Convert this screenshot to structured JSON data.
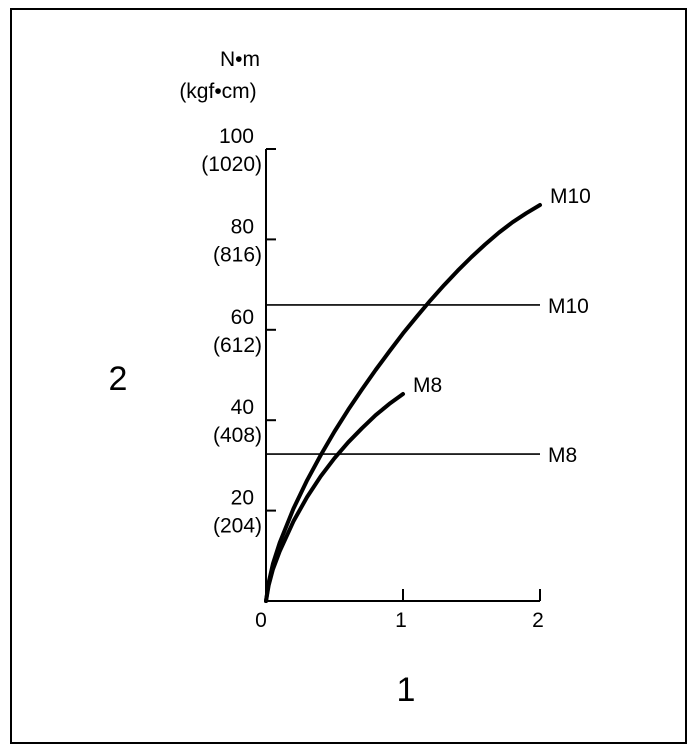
{
  "figure": {
    "x_callout": "1",
    "y_callout": "2"
  },
  "chart_data": {
    "type": "line",
    "title": "",
    "xlabel": "",
    "ylabel_unit_1": "N•m",
    "ylabel_unit_2": "(kgf•cm)",
    "xlim": [
      0,
      2
    ],
    "ylim": [
      0,
      100
    ],
    "x_ticks": [
      {
        "value": 0,
        "label": "0"
      },
      {
        "value": 1,
        "label": "1"
      },
      {
        "value": 2,
        "label": "2"
      }
    ],
    "y_ticks": [
      {
        "value": 20,
        "label": "20",
        "label2": "(204)"
      },
      {
        "value": 40,
        "label": "40",
        "label2": "(408)"
      },
      {
        "value": 60,
        "label": "60",
        "label2": "(612)"
      },
      {
        "value": 80,
        "label": "80",
        "label2": "(816)"
      },
      {
        "value": 100,
        "label": "100",
        "label2": "(1020)"
      }
    ],
    "series": [
      {
        "name": "M10",
        "style": "curve",
        "color": "#000000",
        "x": [
          0,
          0.02,
          0.05,
          0.1,
          0.2,
          0.3,
          0.4,
          0.5,
          0.6,
          0.7,
          0.8,
          0.9,
          1.0,
          1.1,
          1.2,
          1.3,
          1.4,
          1.5,
          1.6,
          1.7,
          1.8,
          1.9,
          2.0
        ],
        "y": [
          0,
          4.1,
          8.2,
          12.9,
          20.4,
          26.7,
          32.3,
          37.5,
          42.3,
          46.8,
          51.1,
          55.2,
          59.2,
          62.9,
          66.5,
          69.9,
          73.1,
          76.1,
          78.9,
          81.5,
          83.8,
          85.8,
          87.6
        ]
      },
      {
        "name": "M8",
        "style": "curve",
        "color": "#000000",
        "x": [
          0,
          0.02,
          0.05,
          0.1,
          0.2,
          0.3,
          0.4,
          0.5,
          0.6,
          0.7,
          0.8,
          0.9,
          1.0
        ],
        "y": [
          0,
          3.5,
          7.0,
          11.0,
          17.6,
          23.0,
          27.6,
          31.6,
          35.1,
          38.2,
          41.1,
          43.6,
          45.8
        ]
      },
      {
        "name": "M10",
        "style": "horizontal",
        "color": "#000000",
        "x": [
          0,
          2
        ],
        "y": [
          65.5,
          65.5
        ]
      },
      {
        "name": "M8",
        "style": "horizontal",
        "color": "#000000",
        "x": [
          0,
          2
        ],
        "y": [
          32.5,
          32.5
        ]
      }
    ]
  }
}
